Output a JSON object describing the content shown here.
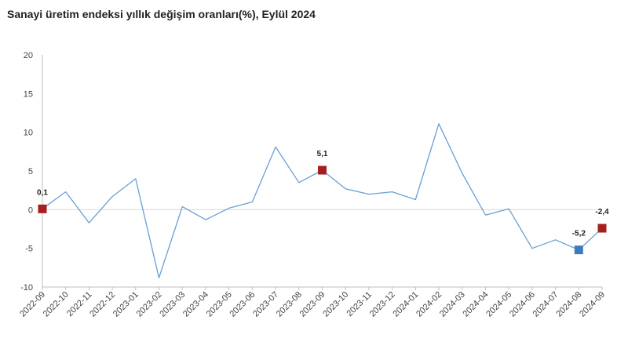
{
  "title": "Sanayi üretim endeksi yıllık değişim oranları(%), Eylül 2024",
  "colors": {
    "line": "#6a9fd4",
    "red_marker": "#a3201f",
    "blue_marker": "#3f7abf",
    "grid": "#d9d9d9",
    "zero_line": "#d9d9d9",
    "axis": "#bfbfbf"
  },
  "chart_data": {
    "type": "line",
    "x": [
      "2022-09",
      "2022-10",
      "2022-11",
      "2022-12",
      "2023-01",
      "2023-02",
      "2023-03",
      "2023-04",
      "2023-05",
      "2023-06",
      "2023-07",
      "2023-08",
      "2023-09",
      "2023-10",
      "2023-11",
      "2023-12",
      "2024-01",
      "2024-02",
      "2024-03",
      "2024-04",
      "2024-05",
      "2024-06",
      "2024-07",
      "2024-08",
      "2024-09"
    ],
    "series": [
      {
        "values": [
          0.1,
          2.3,
          -1.7,
          1.7,
          4.0,
          -8.8,
          0.4,
          -1.3,
          0.2,
          1.0,
          8.1,
          3.5,
          5.1,
          2.7,
          2.0,
          2.3,
          1.3,
          11.1,
          4.7,
          -0.7,
          0.1,
          -5.0,
          -3.9,
          -5.2,
          -2.4
        ]
      }
    ],
    "ylim": [
      -10,
      20
    ],
    "yticks": [
      -10,
      -5,
      0,
      5,
      10,
      15,
      20
    ],
    "grid": false,
    "highlights": [
      {
        "index": 0,
        "label": "0,1",
        "color": "red"
      },
      {
        "index": 12,
        "label": "5,1",
        "color": "red"
      },
      {
        "index": 23,
        "label": "-5,2",
        "color": "blue"
      },
      {
        "index": 24,
        "label": "-2,4",
        "color": "red"
      }
    ]
  }
}
